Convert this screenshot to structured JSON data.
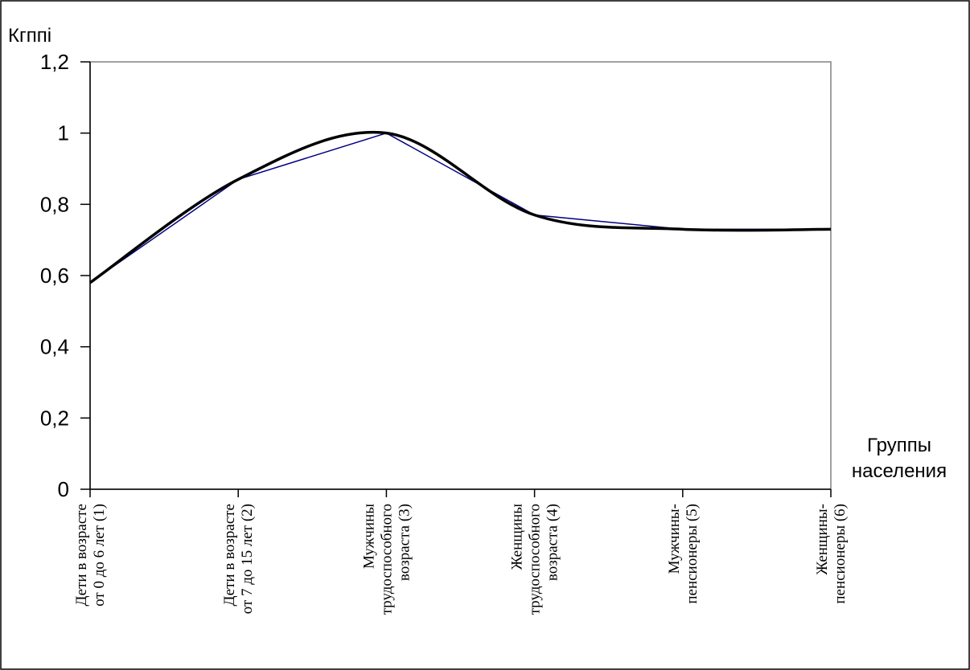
{
  "chart_data": {
    "type": "line",
    "ylabel": "Кгппі",
    "xlabel_lines": [
      "Группы",
      "населения"
    ],
    "ylim": [
      0,
      1.2
    ],
    "ytick_values": [
      0,
      0.2,
      0.4,
      0.6,
      0.8,
      1.0,
      1.2
    ],
    "ytick_labels": [
      "0",
      "0,2",
      "0,4",
      "0,6",
      "0,8",
      "1",
      "1,2"
    ],
    "grid": false,
    "categories": [
      [
        "Дети в возрасте",
        "от  0 до 6 лет (1)"
      ],
      [
        "Дети в возрасте",
        "от 7 до 15 лет (2)"
      ],
      [
        "Мужчины",
        "трудоспособного",
        "возраста (3)"
      ],
      [
        "Женщины",
        "трудоспособного",
        "возраста (4)"
      ],
      [
        "Мужчины-",
        "пенсионеры (5)"
      ],
      [
        "Женщины-",
        "пенсионеры (6)"
      ]
    ],
    "series": [
      {
        "values": [
          0.58,
          0.87,
          1.0,
          0.77,
          0.73,
          0.73
        ],
        "style": "straight",
        "color": "#000080"
      },
      {
        "values": [
          0.58,
          0.87,
          1.0,
          0.77,
          0.73,
          0.73
        ],
        "style": "smooth",
        "color": "#000000"
      }
    ]
  }
}
